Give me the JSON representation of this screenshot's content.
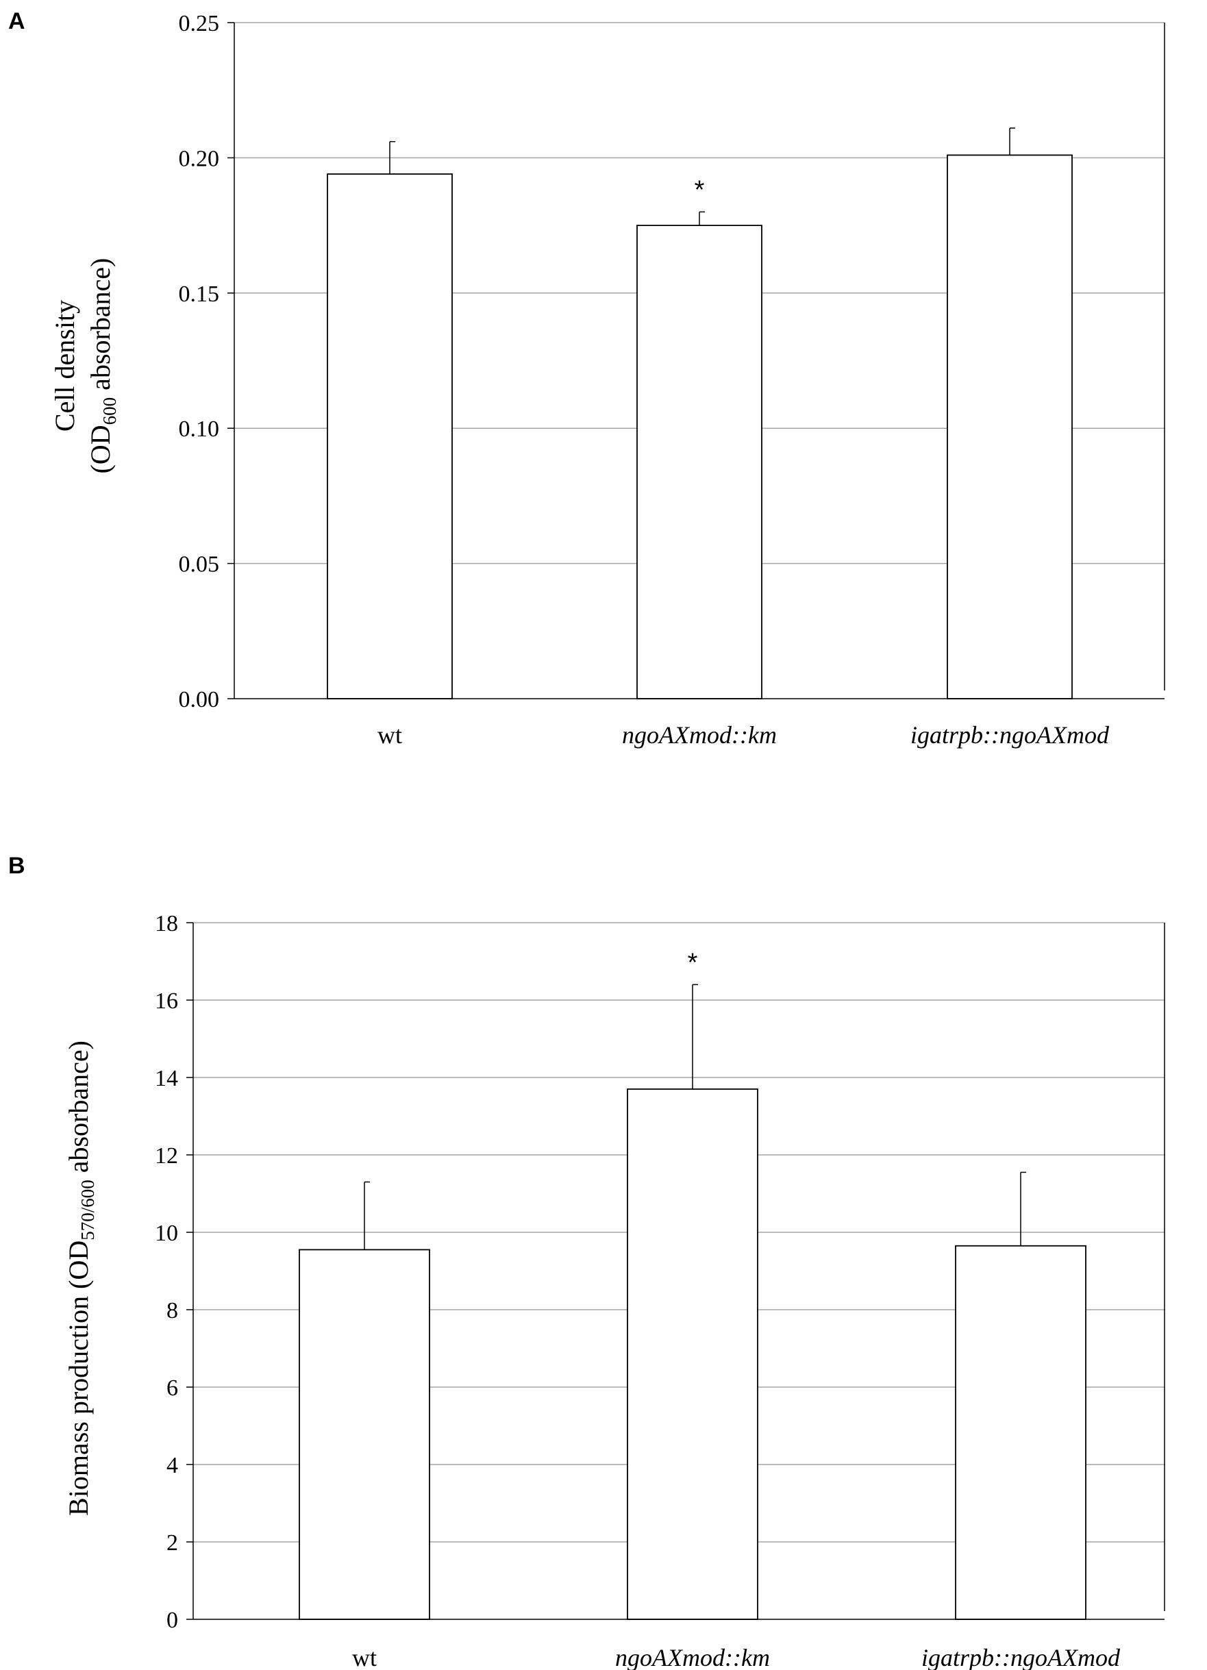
{
  "chart_data": [
    {
      "type": "bar",
      "panel": "A",
      "categories": [
        "wt",
        "ngoAXmod::km",
        "igatrpb::ngoAXmod"
      ],
      "categories_italic": [
        false,
        true,
        true
      ],
      "values": [
        0.194,
        0.175,
        0.201
      ],
      "errors": [
        0.012,
        0.005,
        0.01
      ],
      "significance": [
        "",
        "*",
        ""
      ],
      "ylabel_line1": "Cell density",
      "ylabel_line2_pre": "(OD",
      "ylabel_line2_sub": "600",
      "ylabel_line2_post": " absorbance)",
      "ylim": [
        0,
        0.25
      ],
      "yticks": [
        0,
        0.05,
        0.1,
        0.15,
        0.2,
        0.25
      ],
      "ytick_labels": [
        "0.00",
        "0.05",
        "0.10",
        "0.15",
        "0.20",
        "0.25"
      ],
      "grid": true,
      "bar_fill": "#ffffff",
      "bar_stroke": "#000000",
      "grid_color": "#a6a6a6"
    },
    {
      "type": "bar",
      "panel": "B",
      "categories": [
        "wt",
        "ngoAXmod::km",
        "igatrpb::ngoAXmod"
      ],
      "categories_italic": [
        false,
        true,
        true
      ],
      "values": [
        9.55,
        13.7,
        9.65
      ],
      "errors": [
        1.75,
        2.7,
        1.9
      ],
      "significance": [
        "",
        "*",
        ""
      ],
      "ylabel_pre": "Biomass production (OD",
      "ylabel_sub": "570/600",
      "ylabel_post": " absorbance)",
      "ylim": [
        0,
        18
      ],
      "yticks": [
        0,
        2,
        4,
        6,
        8,
        10,
        12,
        14,
        16,
        18
      ],
      "ytick_labels": [
        "0",
        "2",
        "4",
        "6",
        "8",
        "10",
        "12",
        "14",
        "16",
        "18"
      ],
      "grid": true,
      "bar_fill": "#ffffff",
      "bar_stroke": "#000000",
      "grid_color": "#a6a6a6"
    }
  ]
}
